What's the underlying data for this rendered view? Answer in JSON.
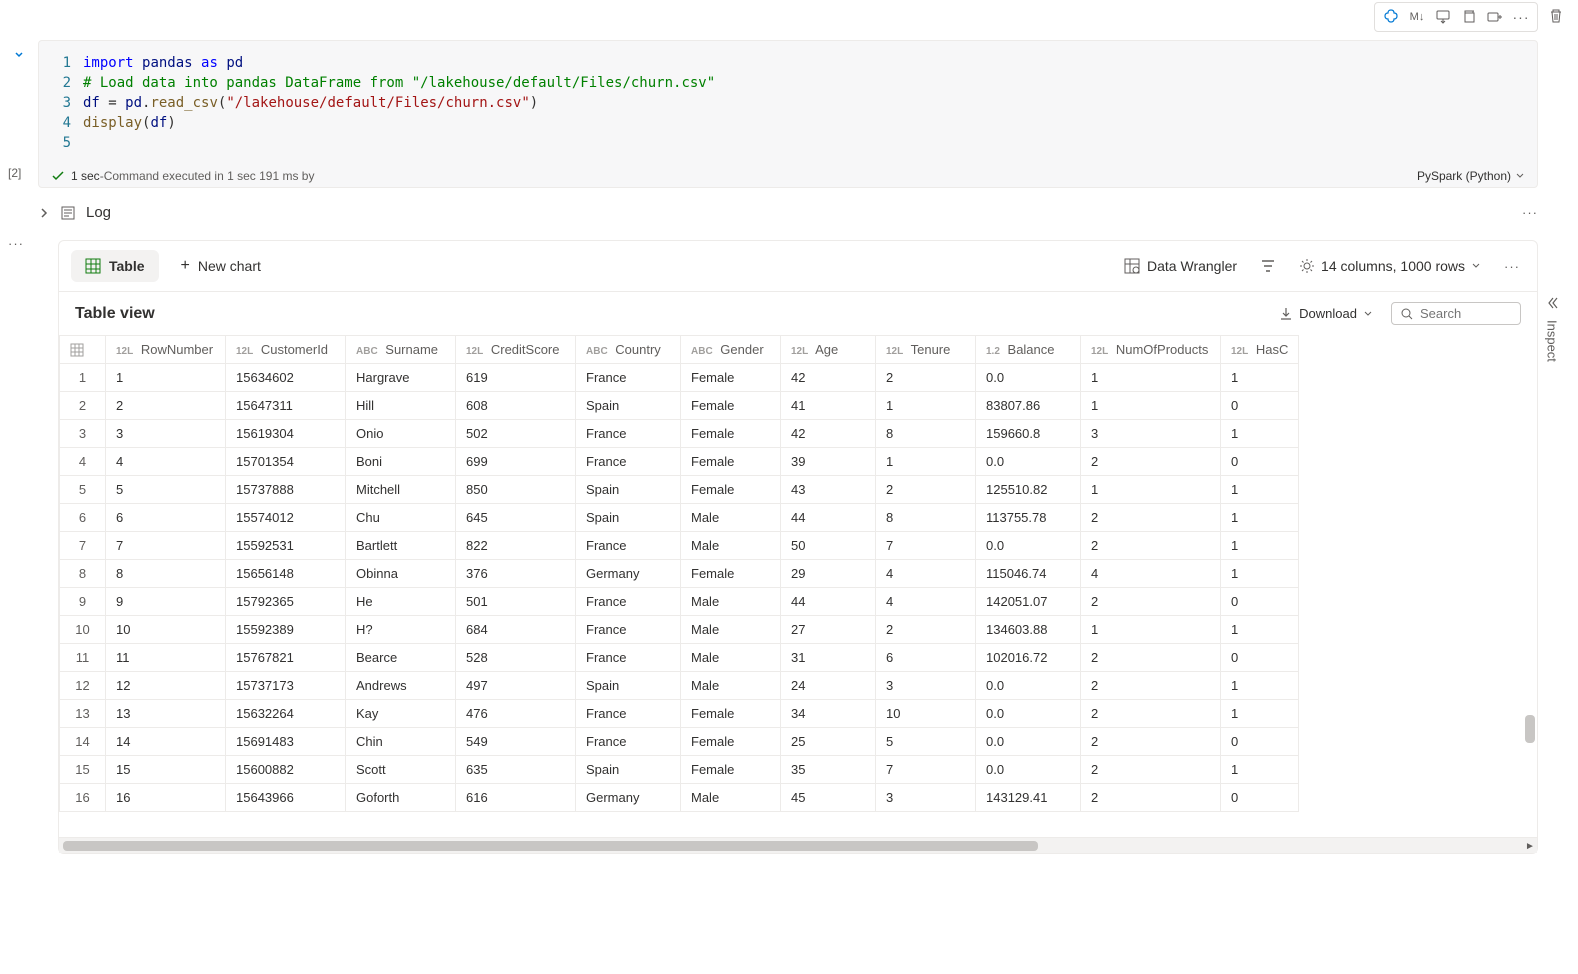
{
  "toolbar": {
    "md_label": "M↓"
  },
  "code": {
    "line_numbers": [
      "1",
      "2",
      "3",
      "4",
      "5"
    ],
    "l1": {
      "kw_import": "import",
      "id_pandas": "pandas",
      "kw_as": "as",
      "id_pd": "pd"
    },
    "l2": {
      "comment": "# Load data into pandas DataFrame from \"/lakehouse/default/Files/churn.csv\""
    },
    "l3": {
      "id_df": "df",
      "eq": " = ",
      "id_pd": "pd",
      "dot": ".",
      "fn": "read_csv",
      "open": "(",
      "str": "\"/lakehouse/default/Files/churn.csv\"",
      "close": ")"
    },
    "l4": {
      "fn": "display",
      "open": "(",
      "id_df": "df",
      "close": ")"
    }
  },
  "status": {
    "time": "1 sec",
    "separator": " - ",
    "detail": "Command executed in 1 sec 191 ms by",
    "language": "PySpark (Python)"
  },
  "exec_count": "[2]",
  "log": {
    "label": "Log"
  },
  "output": {
    "tab_table": "Table",
    "tab_newchart": "New chart",
    "data_wrangler": "Data Wrangler",
    "columns_summary": "14 columns, 1000 rows",
    "view_title": "Table view",
    "download": "Download",
    "search_placeholder": "Search",
    "inspect": "Inspect"
  },
  "table": {
    "columns": [
      {
        "key": "RowNumber",
        "type": "12L",
        "label": "RowNumber"
      },
      {
        "key": "CustomerId",
        "type": "12L",
        "label": "CustomerId"
      },
      {
        "key": "Surname",
        "type": "ABC",
        "label": "Surname"
      },
      {
        "key": "CreditScore",
        "type": "12L",
        "label": "CreditScore"
      },
      {
        "key": "Country",
        "type": "ABC",
        "label": "Country"
      },
      {
        "key": "Gender",
        "type": "ABC",
        "label": "Gender"
      },
      {
        "key": "Age",
        "type": "12L",
        "label": "Age"
      },
      {
        "key": "Tenure",
        "type": "12L",
        "label": "Tenure"
      },
      {
        "key": "Balance",
        "type": "1.2",
        "label": "Balance"
      },
      {
        "key": "NumOfProducts",
        "type": "12L",
        "label": "NumOfProducts"
      },
      {
        "key": "HasC",
        "type": "12L",
        "label": "HasC"
      }
    ],
    "rows": [
      [
        "1",
        "15634602",
        "Hargrave",
        "619",
        "France",
        "Female",
        "42",
        "2",
        "0.0",
        "1",
        "1"
      ],
      [
        "2",
        "15647311",
        "Hill",
        "608",
        "Spain",
        "Female",
        "41",
        "1",
        "83807.86",
        "1",
        "0"
      ],
      [
        "3",
        "15619304",
        "Onio",
        "502",
        "France",
        "Female",
        "42",
        "8",
        "159660.8",
        "3",
        "1"
      ],
      [
        "4",
        "15701354",
        "Boni",
        "699",
        "France",
        "Female",
        "39",
        "1",
        "0.0",
        "2",
        "0"
      ],
      [
        "5",
        "15737888",
        "Mitchell",
        "850",
        "Spain",
        "Female",
        "43",
        "2",
        "125510.82",
        "1",
        "1"
      ],
      [
        "6",
        "15574012",
        "Chu",
        "645",
        "Spain",
        "Male",
        "44",
        "8",
        "113755.78",
        "2",
        "1"
      ],
      [
        "7",
        "15592531",
        "Bartlett",
        "822",
        "France",
        "Male",
        "50",
        "7",
        "0.0",
        "2",
        "1"
      ],
      [
        "8",
        "15656148",
        "Obinna",
        "376",
        "Germany",
        "Female",
        "29",
        "4",
        "115046.74",
        "4",
        "1"
      ],
      [
        "9",
        "15792365",
        "He",
        "501",
        "France",
        "Male",
        "44",
        "4",
        "142051.07",
        "2",
        "0"
      ],
      [
        "10",
        "15592389",
        "H?",
        "684",
        "France",
        "Male",
        "27",
        "2",
        "134603.88",
        "1",
        "1"
      ],
      [
        "11",
        "15767821",
        "Bearce",
        "528",
        "France",
        "Male",
        "31",
        "6",
        "102016.72",
        "2",
        "0"
      ],
      [
        "12",
        "15737173",
        "Andrews",
        "497",
        "Spain",
        "Male",
        "24",
        "3",
        "0.0",
        "2",
        "1"
      ],
      [
        "13",
        "15632264",
        "Kay",
        "476",
        "France",
        "Female",
        "34",
        "10",
        "0.0",
        "2",
        "1"
      ],
      [
        "14",
        "15691483",
        "Chin",
        "549",
        "France",
        "Female",
        "25",
        "5",
        "0.0",
        "2",
        "0"
      ],
      [
        "15",
        "15600882",
        "Scott",
        "635",
        "Spain",
        "Female",
        "35",
        "7",
        "0.0",
        "2",
        "1"
      ],
      [
        "16",
        "15643966",
        "Goforth",
        "616",
        "Germany",
        "Male",
        "45",
        "3",
        "143129.41",
        "2",
        "0"
      ]
    ]
  }
}
